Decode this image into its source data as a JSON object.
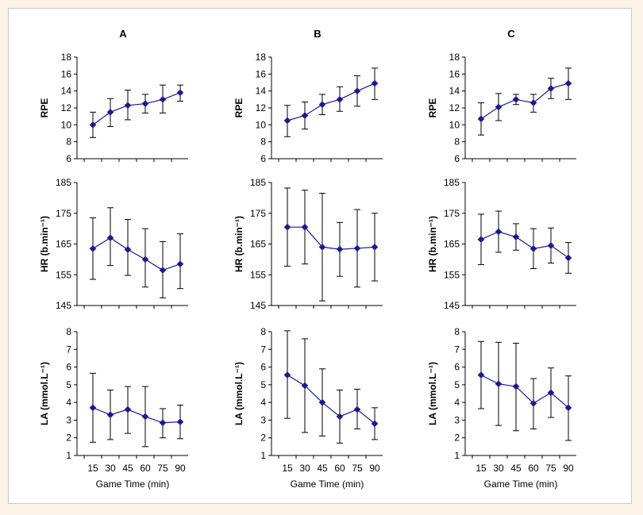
{
  "chart_data": {
    "type": "line",
    "color": "#1a1a96",
    "columns": [
      "A",
      "B",
      "C"
    ],
    "x": [
      15,
      30,
      45,
      60,
      75,
      90
    ],
    "xlabel": "Game Time (min)",
    "rows": [
      {
        "ylabel": "RPE",
        "ylim": [
          6,
          18
        ],
        "yticks": [
          6,
          8,
          10,
          12,
          14,
          16,
          18
        ]
      },
      {
        "ylabel": "HR (b.min⁻¹)",
        "ylim": [
          145,
          185
        ],
        "yticks": [
          145,
          155,
          165,
          175,
          185
        ]
      },
      {
        "ylabel": "LA (mmol.L⁻¹)",
        "ylim": [
          1,
          8
        ],
        "yticks": [
          1,
          2,
          3,
          4,
          5,
          6,
          7,
          8
        ]
      }
    ],
    "panels": [
      {
        "col": "A",
        "row": 0,
        "values": [
          10.0,
          11.5,
          12.3,
          12.5,
          13.0,
          13.8
        ],
        "lower": [
          8.5,
          9.8,
          10.6,
          11.4,
          11.4,
          12.8
        ],
        "upper": [
          11.5,
          13.1,
          14.1,
          13.6,
          14.7,
          14.7
        ]
      },
      {
        "col": "B",
        "row": 0,
        "values": [
          10.5,
          11.1,
          12.4,
          13.0,
          14.0,
          14.9
        ],
        "lower": [
          8.6,
          9.5,
          11.2,
          11.6,
          12.2,
          13.0
        ],
        "upper": [
          12.3,
          12.7,
          13.6,
          14.5,
          15.8,
          16.7
        ]
      },
      {
        "col": "C",
        "row": 0,
        "values": [
          10.7,
          12.1,
          13.0,
          12.6,
          14.3,
          14.9
        ],
        "lower": [
          8.8,
          10.5,
          12.4,
          11.5,
          13.1,
          13.0
        ],
        "upper": [
          12.6,
          13.7,
          13.6,
          13.6,
          15.5,
          16.7
        ]
      },
      {
        "col": "A",
        "row": 1,
        "values": [
          163.5,
          167.0,
          163.2,
          160.0,
          156.5,
          158.5
        ],
        "lower": [
          153.5,
          158.0,
          154.8,
          151.0,
          147.5,
          150.5
        ],
        "upper": [
          173.5,
          176.8,
          173.0,
          170.0,
          165.8,
          168.3
        ]
      },
      {
        "col": "B",
        "row": 1,
        "values": [
          170.5,
          170.5,
          164.0,
          163.3,
          163.6,
          164.0
        ],
        "lower": [
          157.8,
          158.5,
          146.5,
          154.5,
          151.0,
          153.0
        ],
        "upper": [
          183.2,
          182.5,
          181.5,
          172.0,
          176.2,
          175.0
        ]
      },
      {
        "col": "C",
        "row": 1,
        "values": [
          166.5,
          169.0,
          167.3,
          163.5,
          164.5,
          160.5
        ],
        "lower": [
          158.3,
          162.3,
          163.0,
          157.0,
          158.8,
          155.5
        ],
        "upper": [
          174.7,
          175.7,
          171.6,
          170.0,
          170.2,
          165.5
        ]
      },
      {
        "col": "A",
        "row": 2,
        "values": [
          3.7,
          3.3,
          3.6,
          3.2,
          2.85,
          2.9
        ],
        "lower": [
          1.75,
          1.9,
          2.25,
          1.5,
          2.0,
          1.95
        ],
        "upper": [
          5.65,
          4.7,
          4.9,
          4.9,
          3.65,
          3.85
        ]
      },
      {
        "col": "B",
        "row": 2,
        "values": [
          5.55,
          4.95,
          4.0,
          3.2,
          3.6,
          2.8
        ],
        "lower": [
          3.1,
          2.3,
          2.1,
          1.7,
          2.5,
          1.9
        ],
        "upper": [
          8.05,
          7.6,
          5.9,
          4.7,
          4.75,
          3.7
        ]
      },
      {
        "col": "C",
        "row": 2,
        "values": [
          5.55,
          5.05,
          4.9,
          3.95,
          4.55,
          3.7
        ],
        "lower": [
          3.65,
          2.7,
          2.4,
          2.5,
          3.15,
          1.85
        ],
        "upper": [
          7.45,
          7.4,
          7.35,
          5.35,
          5.95,
          5.5
        ]
      }
    ]
  }
}
